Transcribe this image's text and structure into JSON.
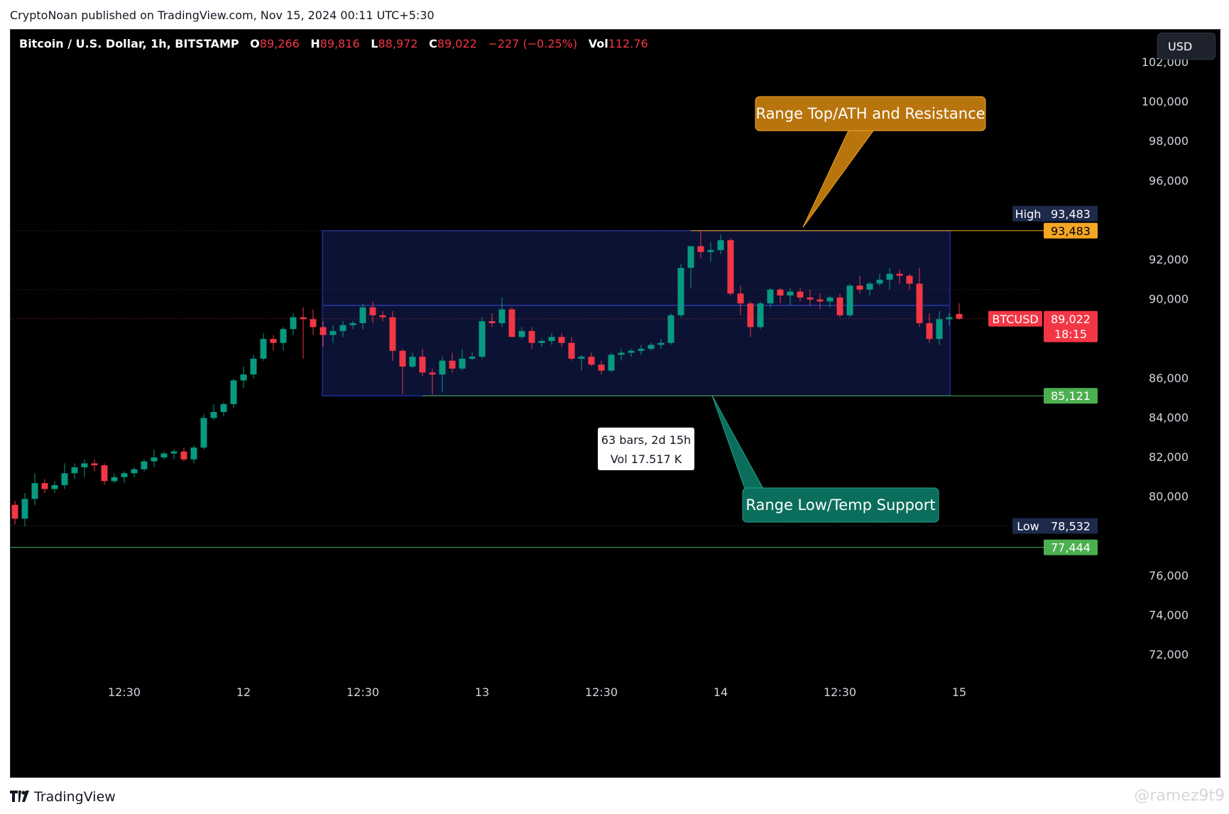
{
  "header": {
    "publisher_line": "CryptoNoan published on TradingView.com, Nov 15, 2024 00:11 UTC+5:30"
  },
  "legend": {
    "symbol": "Bitcoin / U.S. Dollar, 1h, BITSTAMP",
    "o_label": "O",
    "o": "89,266",
    "h_label": "H",
    "h": "89,816",
    "l_label": "L",
    "l": "88,972",
    "c_label": "C",
    "c": "89,022",
    "change": "−227 (−0.25%)",
    "vol_label": "Vol",
    "vol": "112.76"
  },
  "currency_button": "USD",
  "footer": {
    "logo_text": "TradingView",
    "watermark": "@ramez9t9"
  },
  "colors": {
    "up": "#089981",
    "down": "#f23645",
    "range_fill": "#0b1233",
    "range_border": "#2c3bd6",
    "orange": "#b8740d",
    "teal": "#0b6e5c",
    "green_tag": "#4caf50",
    "dark_tag": "#1e2a4a"
  },
  "chart_data": {
    "type": "candlestick",
    "title": "Bitcoin / U.S. Dollar, 1h, BITSTAMP",
    "interval": "1h",
    "ylim": [
      70000,
      103500
    ],
    "y_ticks": [
      "102,000",
      "100,000",
      "98,000",
      "96,000",
      "92,000",
      "90,000",
      "86,000",
      "84,000",
      "82,000",
      "80,000",
      "76,000",
      "74,000",
      "72,000"
    ],
    "y_tick_values": [
      102000,
      100000,
      98000,
      96000,
      92000,
      90000,
      86000,
      84000,
      82000,
      80000,
      76000,
      74000,
      72000
    ],
    "x_ticks": [
      "12:30",
      "12",
      "12:30",
      "13",
      "12:30",
      "14",
      "12:30",
      "15"
    ],
    "x_tick_bars": [
      11,
      23,
      35,
      47,
      59,
      71,
      83,
      95
    ],
    "grid": false,
    "candles": [
      {
        "o": 79600,
        "h": 79800,
        "l": 78600,
        "c": 78900
      },
      {
        "o": 78900,
        "h": 80200,
        "l": 78500,
        "c": 79900
      },
      {
        "o": 79900,
        "h": 81200,
        "l": 79600,
        "c": 80700
      },
      {
        "o": 80700,
        "h": 80900,
        "l": 80200,
        "c": 80400
      },
      {
        "o": 80400,
        "h": 80800,
        "l": 80200,
        "c": 80600
      },
      {
        "o": 80600,
        "h": 81700,
        "l": 80400,
        "c": 81200
      },
      {
        "o": 81200,
        "h": 81700,
        "l": 80900,
        "c": 81500
      },
      {
        "o": 81500,
        "h": 81900,
        "l": 81000,
        "c": 81700
      },
      {
        "o": 81700,
        "h": 81900,
        "l": 81300,
        "c": 81600
      },
      {
        "o": 81600,
        "h": 81700,
        "l": 80600,
        "c": 80800
      },
      {
        "o": 80800,
        "h": 81200,
        "l": 80700,
        "c": 81000
      },
      {
        "o": 81000,
        "h": 81300,
        "l": 80700,
        "c": 81200
      },
      {
        "o": 81200,
        "h": 81500,
        "l": 81000,
        "c": 81400
      },
      {
        "o": 81400,
        "h": 81900,
        "l": 81300,
        "c": 81800
      },
      {
        "o": 81800,
        "h": 82400,
        "l": 81500,
        "c": 82000
      },
      {
        "o": 82000,
        "h": 82300,
        "l": 81900,
        "c": 82200
      },
      {
        "o": 82200,
        "h": 82400,
        "l": 81900,
        "c": 82300
      },
      {
        "o": 82300,
        "h": 82500,
        "l": 81800,
        "c": 81900
      },
      {
        "o": 81900,
        "h": 82600,
        "l": 81700,
        "c": 82500
      },
      {
        "o": 82500,
        "h": 84200,
        "l": 82400,
        "c": 84000
      },
      {
        "o": 84000,
        "h": 84700,
        "l": 83900,
        "c": 84300
      },
      {
        "o": 84300,
        "h": 84800,
        "l": 84100,
        "c": 84700
      },
      {
        "o": 84700,
        "h": 86000,
        "l": 84500,
        "c": 85900
      },
      {
        "o": 85900,
        "h": 86600,
        "l": 85500,
        "c": 86200
      },
      {
        "o": 86200,
        "h": 87200,
        "l": 86000,
        "c": 87000
      },
      {
        "o": 87000,
        "h": 88300,
        "l": 86900,
        "c": 88000
      },
      {
        "o": 88000,
        "h": 88200,
        "l": 87400,
        "c": 87800
      },
      {
        "o": 87800,
        "h": 88600,
        "l": 87400,
        "c": 88500
      },
      {
        "o": 88500,
        "h": 89300,
        "l": 88200,
        "c": 89100
      },
      {
        "o": 89100,
        "h": 89600,
        "l": 87000,
        "c": 89000
      },
      {
        "o": 89000,
        "h": 89500,
        "l": 88200,
        "c": 88600
      },
      {
        "o": 88600,
        "h": 88900,
        "l": 87600,
        "c": 88200
      },
      {
        "o": 88200,
        "h": 88700,
        "l": 87800,
        "c": 88400
      },
      {
        "o": 88400,
        "h": 88900,
        "l": 88100,
        "c": 88700
      },
      {
        "o": 88700,
        "h": 88900,
        "l": 88500,
        "c": 88800
      },
      {
        "o": 88800,
        "h": 89800,
        "l": 88500,
        "c": 89600
      },
      {
        "o": 89600,
        "h": 89900,
        "l": 88800,
        "c": 89200
      },
      {
        "o": 89200,
        "h": 89400,
        "l": 88900,
        "c": 89100
      },
      {
        "o": 89100,
        "h": 89400,
        "l": 86900,
        "c": 87400
      },
      {
        "o": 87400,
        "h": 87500,
        "l": 85200,
        "c": 86600
      },
      {
        "o": 86600,
        "h": 87300,
        "l": 86500,
        "c": 87100
      },
      {
        "o": 87100,
        "h": 87500,
        "l": 86100,
        "c": 86300
      },
      {
        "o": 86300,
        "h": 86500,
        "l": 85200,
        "c": 86200
      },
      {
        "o": 86200,
        "h": 87100,
        "l": 85300,
        "c": 86900
      },
      {
        "o": 86900,
        "h": 87300,
        "l": 86300,
        "c": 86500
      },
      {
        "o": 86500,
        "h": 87500,
        "l": 86400,
        "c": 87000
      },
      {
        "o": 87000,
        "h": 87300,
        "l": 86900,
        "c": 87100
      },
      {
        "o": 87100,
        "h": 89100,
        "l": 87000,
        "c": 88900
      },
      {
        "o": 88900,
        "h": 89300,
        "l": 88600,
        "c": 88800
      },
      {
        "o": 88800,
        "h": 90100,
        "l": 88600,
        "c": 89500
      },
      {
        "o": 89500,
        "h": 89600,
        "l": 88100,
        "c": 88100
      },
      {
        "o": 88100,
        "h": 88600,
        "l": 88000,
        "c": 88400
      },
      {
        "o": 88400,
        "h": 88600,
        "l": 87500,
        "c": 87800
      },
      {
        "o": 87800,
        "h": 88000,
        "l": 87600,
        "c": 87900
      },
      {
        "o": 87900,
        "h": 88300,
        "l": 87700,
        "c": 88100
      },
      {
        "o": 88100,
        "h": 88300,
        "l": 87600,
        "c": 87800
      },
      {
        "o": 87800,
        "h": 88100,
        "l": 86900,
        "c": 87000
      },
      {
        "o": 87000,
        "h": 87200,
        "l": 86400,
        "c": 87100
      },
      {
        "o": 87100,
        "h": 87300,
        "l": 86600,
        "c": 86700
      },
      {
        "o": 86700,
        "h": 86900,
        "l": 86200,
        "c": 86400
      },
      {
        "o": 86400,
        "h": 87300,
        "l": 86300,
        "c": 87200
      },
      {
        "o": 87200,
        "h": 87500,
        "l": 86900,
        "c": 87300
      },
      {
        "o": 87300,
        "h": 87500,
        "l": 87100,
        "c": 87400
      },
      {
        "o": 87400,
        "h": 87700,
        "l": 87200,
        "c": 87500
      },
      {
        "o": 87500,
        "h": 87800,
        "l": 87400,
        "c": 87700
      },
      {
        "o": 87700,
        "h": 88000,
        "l": 87500,
        "c": 87800
      },
      {
        "o": 87800,
        "h": 89300,
        "l": 87700,
        "c": 89200
      },
      {
        "o": 89200,
        "h": 91800,
        "l": 89100,
        "c": 91600
      },
      {
        "o": 91600,
        "h": 92600,
        "l": 90600,
        "c": 92700
      },
      {
        "o": 92700,
        "h": 93483,
        "l": 92100,
        "c": 92400
      },
      {
        "o": 92400,
        "h": 92900,
        "l": 91900,
        "c": 92500
      },
      {
        "o": 92500,
        "h": 93300,
        "l": 92300,
        "c": 93000
      },
      {
        "o": 93000,
        "h": 93100,
        "l": 90200,
        "c": 90300
      },
      {
        "o": 90300,
        "h": 90700,
        "l": 89200,
        "c": 89800
      },
      {
        "o": 89800,
        "h": 89900,
        "l": 88100,
        "c": 88600
      },
      {
        "o": 88600,
        "h": 89900,
        "l": 88500,
        "c": 89800
      },
      {
        "o": 89800,
        "h": 90600,
        "l": 89600,
        "c": 90500
      },
      {
        "o": 90500,
        "h": 90600,
        "l": 89800,
        "c": 90200
      },
      {
        "o": 90200,
        "h": 90600,
        "l": 89700,
        "c": 90400
      },
      {
        "o": 90400,
        "h": 90600,
        "l": 89900,
        "c": 90100
      },
      {
        "o": 90100,
        "h": 90500,
        "l": 89700,
        "c": 90000
      },
      {
        "o": 90000,
        "h": 90300,
        "l": 89500,
        "c": 89900
      },
      {
        "o": 89900,
        "h": 90200,
        "l": 89600,
        "c": 90100
      },
      {
        "o": 90100,
        "h": 90300,
        "l": 89100,
        "c": 89200
      },
      {
        "o": 89200,
        "h": 90800,
        "l": 89100,
        "c": 90700
      },
      {
        "o": 90700,
        "h": 91200,
        "l": 90300,
        "c": 90500
      },
      {
        "o": 90500,
        "h": 90900,
        "l": 90200,
        "c": 90800
      },
      {
        "o": 90800,
        "h": 91300,
        "l": 90700,
        "c": 91000
      },
      {
        "o": 91000,
        "h": 91600,
        "l": 90500,
        "c": 91300
      },
      {
        "o": 91300,
        "h": 91500,
        "l": 90800,
        "c": 91200
      },
      {
        "o": 91200,
        "h": 91300,
        "l": 90500,
        "c": 90800
      },
      {
        "o": 90800,
        "h": 91600,
        "l": 88600,
        "c": 88800
      },
      {
        "o": 88800,
        "h": 89300,
        "l": 87800,
        "c": 88000
      },
      {
        "o": 88000,
        "h": 89400,
        "l": 87700,
        "c": 89000
      },
      {
        "o": 89000,
        "h": 89300,
        "l": 88700,
        "c": 89100
      },
      {
        "o": 89266,
        "h": 89816,
        "l": 88972,
        "c": 89022
      }
    ],
    "current_price": 89022,
    "range_box": {
      "start_bar": 31,
      "end_bar": 94,
      "top": 93483,
      "bottom": 85121,
      "info_line1": "63 bars, 2d 15h",
      "info_line2": "Vol 17.517 K"
    },
    "levels": {
      "high": 93483,
      "low": 78532,
      "support_line": 77444,
      "range_low": 85121
    },
    "price_tags": {
      "high_label": "High",
      "high_value": "93,483",
      "range_top_value": "93,483",
      "symbol_label": "BTCUSD",
      "current_value": "89,022",
      "countdown": "18:15",
      "range_low_value": "85,121",
      "low_label": "Low",
      "low_value": "78,532",
      "support_value": "77,444"
    },
    "annotations": {
      "top": "Range Top/ATH and Resistance",
      "bottom": "Range Low/Temp Support"
    }
  }
}
